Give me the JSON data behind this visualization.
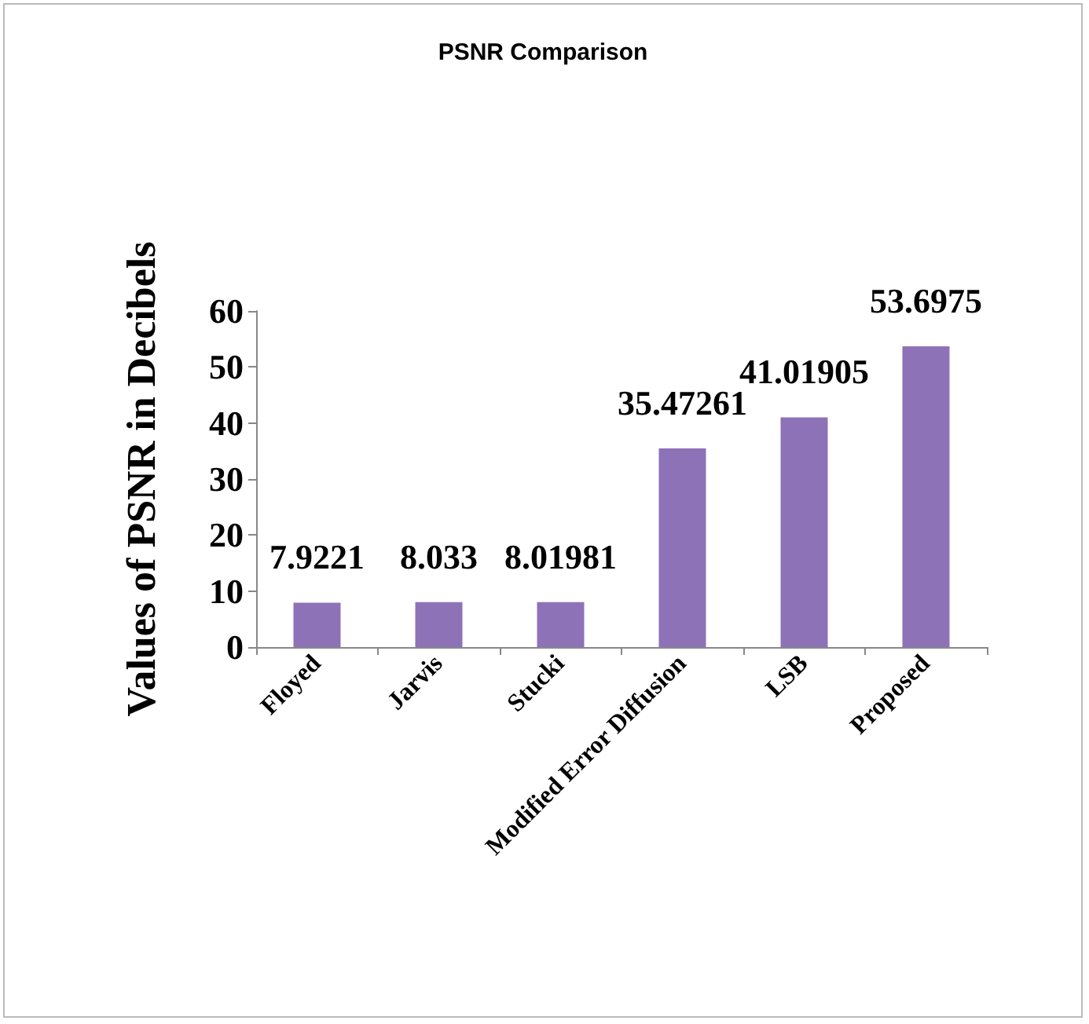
{
  "chart_data": {
    "type": "bar",
    "title": "PSNR Comparison",
    "ylabel": "Values of PSNR in Decibels",
    "categories": [
      "Floyed",
      "Jarvis",
      "Stucki",
      "Modified Error Diffusion",
      "LSB",
      "Proposed"
    ],
    "values": [
      7.9221,
      8.033,
      8.01981,
      35.47261,
      41.01905,
      53.6975
    ],
    "color": "#8e72b8",
    "ylim": [
      0,
      60
    ],
    "yticks": [
      0,
      10,
      20,
      30,
      40,
      50,
      60
    ],
    "grid": false,
    "data_labels": true
  }
}
